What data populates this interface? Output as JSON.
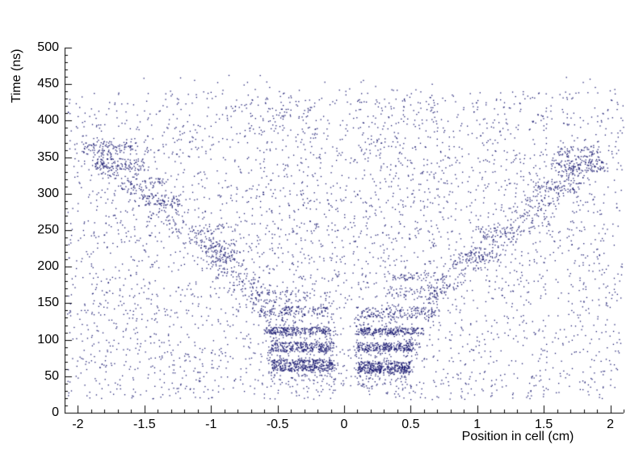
{
  "chart_data": {
    "type": "scatter",
    "xlabel": "Position in cell (cm)",
    "ylabel": "Time (ns)",
    "xlim": [
      -2.1,
      2.1
    ],
    "ylim": [
      0,
      500
    ],
    "x_ticks": [
      {
        "v": -2,
        "label": "-2"
      },
      {
        "v": -1.5,
        "label": "-1.5"
      },
      {
        "v": -1,
        "label": "-1"
      },
      {
        "v": -0.5,
        "label": "-0.5"
      },
      {
        "v": 0,
        "label": "0"
      },
      {
        "v": 0.5,
        "label": "0.5"
      },
      {
        "v": 1,
        "label": "1"
      },
      {
        "v": 1.5,
        "label": "1.5"
      },
      {
        "v": 2,
        "label": "2"
      }
    ],
    "y_ticks": [
      {
        "v": 0,
        "label": "0"
      },
      {
        "v": 50,
        "label": "50"
      },
      {
        "v": 100,
        "label": "100"
      },
      {
        "v": 150,
        "label": "150"
      },
      {
        "v": 200,
        "label": "200"
      },
      {
        "v": 250,
        "label": "250"
      },
      {
        "v": 300,
        "label": "300"
      },
      {
        "v": 350,
        "label": "350"
      },
      {
        "v": 400,
        "label": "400"
      },
      {
        "v": 450,
        "label": "450"
      },
      {
        "v": 500,
        "label": "500"
      }
    ],
    "x_minor_step": 0.1,
    "y_minor_step": 10,
    "axis_color": "#000000",
    "marker_color": "#191970",
    "seed": 20,
    "noise": {
      "x": [
        -2.08,
        2.1
      ],
      "t": [
        18,
        443
      ],
      "n": 3500
    },
    "noise_high": {
      "x": [
        -2.0,
        2.0
      ],
      "t": [
        443,
        462
      ],
      "n": 20
    },
    "clusters": [
      {
        "x": [
          -0.58,
          -0.05
        ],
        "t": [
          35,
          150
        ],
        "n": 260
      },
      {
        "x": [
          0.08,
          0.55
        ],
        "t": [
          33,
          148
        ],
        "n": 260
      },
      {
        "x": [
          -0.55,
          -0.07
        ],
        "t": [
          57,
          73
        ],
        "n": 330
      },
      {
        "x": [
          0.1,
          0.5
        ],
        "t": [
          54,
          70
        ],
        "n": 330
      },
      {
        "x": [
          -0.55,
          -0.08
        ],
        "t": [
          83,
          97
        ],
        "n": 240
      },
      {
        "x": [
          0.1,
          0.52
        ],
        "t": [
          84,
          96
        ],
        "n": 240
      },
      {
        "x": [
          -0.6,
          -0.1
        ],
        "t": [
          107,
          117
        ],
        "n": 200
      },
      {
        "x": [
          0.08,
          0.6
        ],
        "t": [
          107,
          116
        ],
        "n": 200
      },
      {
        "x": [
          -0.65,
          -0.12
        ],
        "t": [
          132,
          146
        ],
        "n": 115
      },
      {
        "x": [
          0.12,
          0.72
        ],
        "t": [
          130,
          144
        ],
        "n": 115
      },
      {
        "x": [
          -0.72,
          -0.25
        ],
        "t": [
          152,
          168
        ],
        "n": 55
      },
      {
        "x": [
          0.3,
          0.78
        ],
        "t": [
          155,
          172
        ],
        "n": 55
      },
      {
        "x": [
          0.35,
          0.75
        ],
        "t": [
          182,
          192
        ],
        "n": 45
      },
      {
        "x": [
          -1.08,
          -0.82
        ],
        "t": [
          205,
          238
        ],
        "n": 80
      },
      {
        "x": [
          0.85,
          1.18
        ],
        "t": [
          205,
          220
        ],
        "n": 70
      },
      {
        "x": [
          -1.15,
          -0.9
        ],
        "t": [
          243,
          258
        ],
        "n": 30
      },
      {
        "x": [
          0.98,
          1.22
        ],
        "t": [
          240,
          255
        ],
        "n": 30
      },
      {
        "x": [
          -1.48,
          -1.22
        ],
        "t": [
          283,
          298
        ],
        "n": 55
      },
      {
        "x": [
          -1.62,
          -1.35
        ],
        "t": [
          308,
          322
        ],
        "n": 40
      },
      {
        "x": [
          1.42,
          1.78
        ],
        "t": [
          300,
          318
        ],
        "n": 55
      },
      {
        "x": [
          -1.88,
          -1.5
        ],
        "t": [
          332,
          348
        ],
        "n": 100
      },
      {
        "x": [
          1.55,
          1.95
        ],
        "t": [
          330,
          348
        ],
        "n": 100
      },
      {
        "x": [
          -1.97,
          -1.55
        ],
        "t": [
          354,
          372
        ],
        "n": 90
      },
      {
        "x": [
          1.6,
          1.92
        ],
        "t": [
          350,
          365
        ],
        "n": 55
      },
      {
        "x": [
          -0.85,
          -0.1
        ],
        "t": [
          150,
          430
        ],
        "n": 160
      },
      {
        "x": [
          0.1,
          0.85
        ],
        "t": [
          150,
          430
        ],
        "n": 160
      }
    ],
    "bands": [
      {
        "from": [
          -0.55,
          150
        ],
        "to": [
          -1.9,
          360
        ],
        "width": 36,
        "n": 330
      },
      {
        "from": [
          0.55,
          145
        ],
        "to": [
          1.9,
          350
        ],
        "width": 36,
        "n": 330
      }
    ]
  }
}
